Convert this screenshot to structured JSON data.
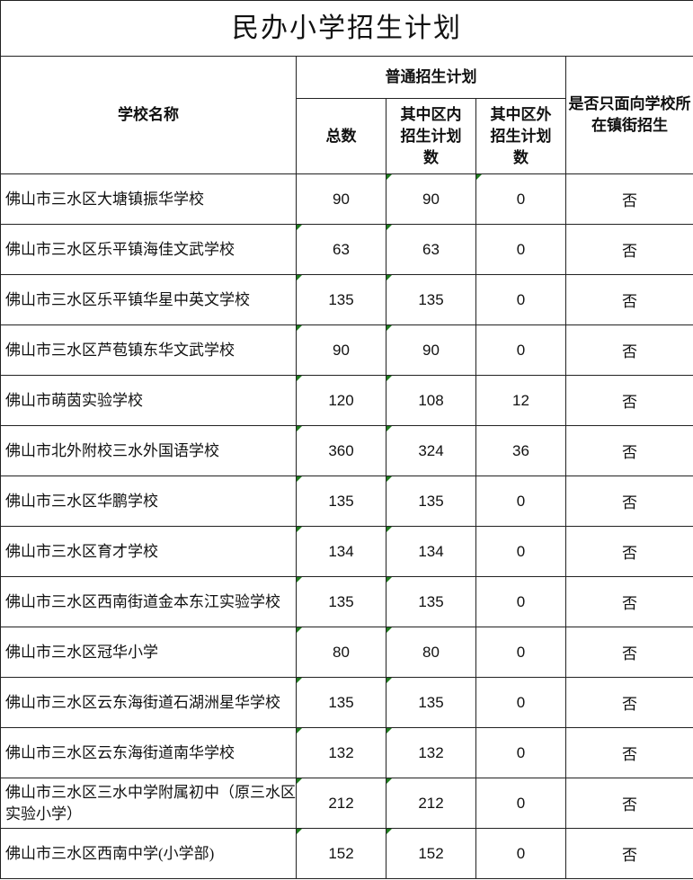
{
  "title": "民办小学招生计划",
  "headers": {
    "school_name": "学校名称",
    "group": "普通招生计划",
    "total": "总数",
    "in_district": "其中区内招生计划数",
    "out_district": "其中区外招生计划数",
    "local_only": "是否只面向学校所在镇街招生"
  },
  "indicator_color": "#1e7b1e",
  "rows": [
    {
      "name": "佛山市三水区大塘镇振华学校",
      "total": "90",
      "in": "90",
      "out": "0",
      "local": "否"
    },
    {
      "name": "佛山市三水区乐平镇海佳文武学校",
      "total": "63",
      "in": "63",
      "out": "0",
      "local": "否"
    },
    {
      "name": "佛山市三水区乐平镇华星中英文学校",
      "total": "135",
      "in": "135",
      "out": "0",
      "local": "否"
    },
    {
      "name": "佛山市三水区芦苞镇东华文武学校",
      "total": "90",
      "in": "90",
      "out": "0",
      "local": "否"
    },
    {
      "name": "佛山市萌茵实验学校",
      "total": "120",
      "in": "108",
      "out": "12",
      "local": "否"
    },
    {
      "name": "佛山市北外附校三水外国语学校",
      "total": "360",
      "in": "324",
      "out": "36",
      "local": "否"
    },
    {
      "name": "佛山市三水区华鹏学校",
      "total": "135",
      "in": "135",
      "out": "0",
      "local": "否"
    },
    {
      "name": "佛山市三水区育才学校",
      "total": "134",
      "in": "134",
      "out": "0",
      "local": "否"
    },
    {
      "name": "佛山市三水区西南街道金本东江实验学校",
      "total": "135",
      "in": "135",
      "out": "0",
      "local": "否"
    },
    {
      "name": "佛山市三水区冠华小学",
      "total": "80",
      "in": "80",
      "out": "0",
      "local": "否"
    },
    {
      "name": "佛山市三水区云东海街道石湖洲星华学校",
      "total": "135",
      "in": "135",
      "out": "0",
      "local": "否"
    },
    {
      "name": "佛山市三水区云东海街道南华学校",
      "total": "132",
      "in": "132",
      "out": "0",
      "local": "否"
    },
    {
      "name": "佛山市三水区三水中学附属初中（原三水区实验小学）",
      "total": "212",
      "in": "212",
      "out": "0",
      "local": "否"
    },
    {
      "name": "佛山市三水区西南中学(小学部)",
      "total": "152",
      "in": "152",
      "out": "0",
      "local": "否"
    }
  ]
}
